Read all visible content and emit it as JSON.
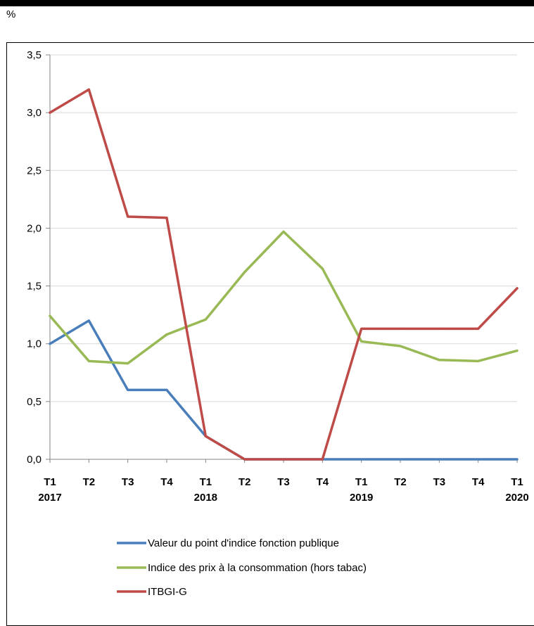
{
  "chart_data": {
    "type": "line",
    "ylabel": "%",
    "ylim": [
      0,
      3.5
    ],
    "yticks": [
      "0,0",
      "0,5",
      "1,0",
      "1,5",
      "2,0",
      "2,5",
      "3,0",
      "3,5"
    ],
    "x_quarters": [
      "T1",
      "T2",
      "T3",
      "T4",
      "T1",
      "T2",
      "T3",
      "T4",
      "T1",
      "T2",
      "T3",
      "T4",
      "T1"
    ],
    "x_years": [
      "2017",
      "",
      "",
      "",
      "2018",
      "",
      "",
      "",
      "2019",
      "",
      "",
      "",
      "2020"
    ],
    "grid": true,
    "legend_position": "bottom",
    "series": [
      {
        "name": "Valeur du point d'indice fonction publique",
        "color": "#4a7ebb",
        "values": [
          1.0,
          1.2,
          0.6,
          0.6,
          0.2,
          0.0,
          0.0,
          0.0,
          0.0,
          0.0,
          0.0,
          0.0,
          0.0
        ]
      },
      {
        "name": "Indice des prix à la consommation (hors tabac)",
        "color": "#98b954",
        "values": [
          1.24,
          0.85,
          0.83,
          1.08,
          1.21,
          1.62,
          1.97,
          1.65,
          1.02,
          0.98,
          0.86,
          0.85,
          0.94
        ]
      },
      {
        "name": "ITBGI-G",
        "color": "#be4b48",
        "values": [
          3.0,
          3.2,
          2.1,
          2.09,
          0.2,
          0.0,
          0.0,
          0.0,
          1.13,
          1.13,
          1.13,
          1.13,
          1.48
        ]
      }
    ]
  }
}
